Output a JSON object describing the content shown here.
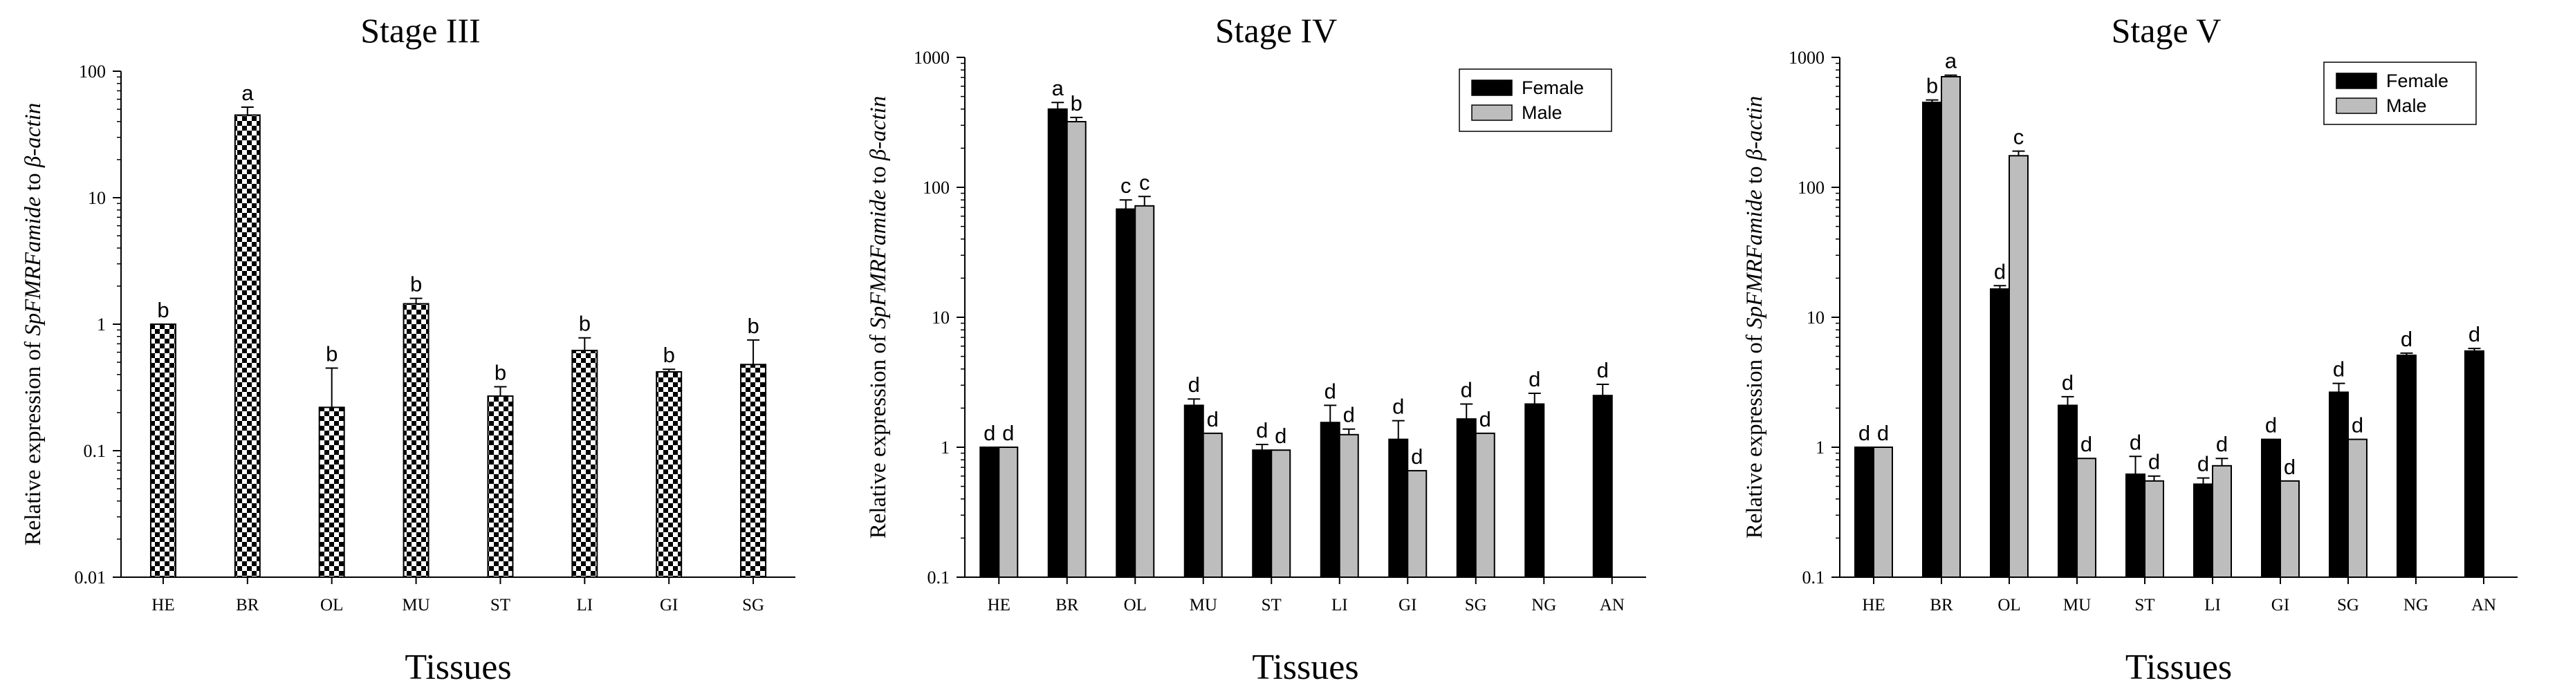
{
  "colors": {
    "female": "#000000",
    "male": "#bdbdbd",
    "axis": "#000000"
  },
  "chart_data": [
    {
      "type": "bar",
      "title": "Stage III",
      "ylabel_parts": [
        "Relative expression of ",
        "SpFMRFamide",
        " to ",
        "β-actin"
      ],
      "xlabel": "Tissues",
      "yscale": "log",
      "ylim": [
        0.01,
        100
      ],
      "yticks": [
        "0.01",
        "0.1",
        "1",
        "10",
        "100"
      ],
      "categories": [
        "HE",
        "BR",
        "OL",
        "MU",
        "ST",
        "LI",
        "GI",
        "SG"
      ],
      "series": [
        {
          "name": "Stage III",
          "pattern": "checker",
          "values": [
            1.0,
            45,
            0.22,
            1.45,
            0.27,
            0.62,
            0.42,
            0.48
          ],
          "errors": [
            0,
            52,
            0.45,
            1.6,
            0.32,
            0.78,
            0.44,
            0.75
          ],
          "labels": [
            "b",
            "a",
            "b",
            "b",
            "b",
            "b",
            "b",
            "b"
          ]
        }
      ]
    },
    {
      "type": "bar",
      "title": "Stage IV",
      "ylabel_parts": [
        "Relative expression of ",
        "SpFMRFamide",
        " to ",
        "β-actin"
      ],
      "xlabel": "Tissues",
      "yscale": "log",
      "ylim": [
        0.1,
        1000
      ],
      "yticks": [
        "0.1",
        "1",
        "10",
        "100",
        "1000"
      ],
      "categories": [
        "HE",
        "BR",
        "OL",
        "MU",
        "ST",
        "LI",
        "GI",
        "SG",
        "NG",
        "AN"
      ],
      "legend": [
        "Female",
        "Male"
      ],
      "series": [
        {
          "name": "Female",
          "values": [
            1.0,
            400,
            68,
            2.1,
            0.95,
            1.55,
            1.15,
            1.65,
            2.15,
            2.5
          ],
          "errors": [
            0,
            450,
            80,
            2.35,
            1.05,
            2.1,
            1.6,
            2.15,
            2.6,
            3.05
          ],
          "labels": [
            "d",
            "a",
            "c",
            "d",
            "d",
            "d",
            "d",
            "d",
            "d",
            "d"
          ]
        },
        {
          "name": "Male",
          "values": [
            1.0,
            320,
            72,
            1.28,
            0.95,
            1.25,
            0.66,
            1.28,
            null,
            null
          ],
          "errors": [
            0,
            345,
            85,
            0,
            0,
            1.38,
            0,
            0,
            null,
            null
          ],
          "labels": [
            "d",
            "b",
            "c",
            "d",
            "d",
            "d",
            "d",
            "d",
            null,
            null
          ]
        }
      ]
    },
    {
      "type": "bar",
      "title": "Stage V",
      "ylabel_parts": [
        "Relative expression of ",
        "SpFMRFamide",
        " to ",
        "β-actin"
      ],
      "xlabel": "Tissues",
      "yscale": "log",
      "ylim": [
        0.1,
        1000
      ],
      "yticks": [
        "0.1",
        "1",
        "10",
        "100",
        "1000"
      ],
      "categories": [
        "HE",
        "BR",
        "OL",
        "MU",
        "ST",
        "LI",
        "GI",
        "SG",
        "NG",
        "AN"
      ],
      "legend": [
        "Female",
        "Male"
      ],
      "series": [
        {
          "name": "Female",
          "values": [
            1.0,
            450,
            16.5,
            2.1,
            0.62,
            0.52,
            1.15,
            2.65,
            5.1,
            5.5
          ],
          "errors": [
            0,
            470,
            17.5,
            2.45,
            0.85,
            0.58,
            0,
            3.1,
            5.3,
            5.75
          ],
          "labels": [
            "d",
            "b",
            "d",
            "d",
            "d",
            "d",
            "d",
            "d",
            "d",
            "d"
          ]
        },
        {
          "name": "Male",
          "values": [
            1.0,
            710,
            175,
            0.82,
            0.55,
            0.72,
            0.55,
            1.15,
            null,
            null
          ],
          "errors": [
            0,
            730,
            190,
            0,
            0.6,
            0.82,
            0,
            0,
            null,
            null
          ],
          "labels": [
            "d",
            "a",
            "c",
            "d",
            "d",
            "d",
            "d",
            "d",
            null,
            null
          ]
        }
      ]
    }
  ]
}
